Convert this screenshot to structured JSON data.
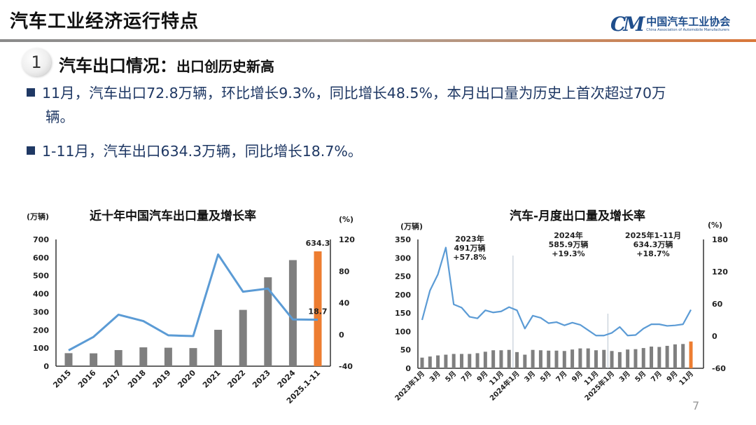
{
  "header": {
    "title": "汽车工业经济运行特点",
    "logo_cn": "中国汽车工业协会",
    "logo_en": "China Association of Automobile Manufacturers",
    "logo_mark": "CM"
  },
  "section": {
    "number": "1",
    "title": "汽车出口情况：",
    "subtitle": "出口创历史新高"
  },
  "bullets": [
    {
      "line1": "11月，汽车出口72.8万辆，环比增长9.3%，同比增长48.5%，本月出口量为历史上首次超过70万",
      "line2": "辆。"
    },
    {
      "line1": "1-11月，汽车出口634.3万辆，同比增长18.7%。"
    }
  ],
  "page_number": "7",
  "colors": {
    "bar": "#7f7f7f",
    "highlight": "#ed7d31",
    "line": "#5b9bd5",
    "text": "#1f3864"
  },
  "chart_data": [
    {
      "type": "bar+line",
      "title": "近十年中国汽车出口量及增长率",
      "ylabel_left": "(万辆)",
      "ylabel_right": "(%)",
      "ylim_left": [
        0,
        700
      ],
      "yticks_left": [
        "0",
        "100",
        "200",
        "300",
        "400",
        "500",
        "600",
        "700"
      ],
      "ylim_right": [
        -40,
        120
      ],
      "yticks_right": [
        "-40",
        "0",
        "40",
        "80",
        "120"
      ],
      "categories": [
        "2015",
        "2016",
        "2017",
        "2018",
        "2019",
        "2020",
        "2021",
        "2022",
        "2023",
        "2024",
        "2025.1-11"
      ],
      "series": [
        {
          "kind": "bar",
          "values": [
            72,
            71,
            89,
            104,
            102,
            100,
            201,
            311,
            491,
            586,
            634.3
          ]
        },
        {
          "kind": "line",
          "axis": "right",
          "values": [
            -20,
            -3,
            25,
            17,
            -1,
            -2,
            101,
            54,
            58,
            19,
            18.7
          ]
        }
      ],
      "data_labels": {
        "bar_last": "634.3",
        "line_last": "18.7"
      },
      "grid": false
    },
    {
      "type": "bar+line",
      "title": "汽车-月度出口量及增长率",
      "ylabel_left": "(万辆)",
      "ylabel_right": "(%)",
      "ylim_left": [
        0,
        350
      ],
      "yticks_left": [
        "0",
        "50",
        "100",
        "150",
        "200",
        "250",
        "300",
        "350"
      ],
      "ylim_right": [
        -60,
        180
      ],
      "yticks_right": [
        "-60",
        "0",
        "60",
        "120",
        "180"
      ],
      "categories": [
        "2023年1月",
        "",
        "3月",
        "",
        "5月",
        "",
        "7月",
        "",
        "9月",
        "",
        "11月",
        "",
        "2024年1月",
        "",
        "3月",
        "",
        "5月",
        "",
        "7月",
        "",
        "9月",
        "",
        "11月",
        "",
        "2025年1月",
        "",
        "3月",
        "",
        "5月",
        "",
        "7月",
        "",
        "9月",
        "",
        "11月"
      ],
      "series": [
        {
          "kind": "bar",
          "values": [
            29,
            32,
            35,
            37,
            39,
            39,
            39,
            41,
            45,
            49,
            49,
            50,
            44,
            37,
            50,
            49,
            48,
            48,
            47,
            51,
            54,
            54,
            49,
            50,
            47,
            44,
            51,
            52,
            55,
            59,
            58,
            61,
            65,
            66,
            72.8
          ]
        },
        {
          "kind": "line",
          "axis": "right",
          "values": [
            30,
            85,
            115,
            165,
            59,
            53,
            36,
            33,
            48,
            44,
            46,
            54,
            48,
            14,
            38,
            34,
            24,
            26,
            20,
            25,
            21,
            11,
            1,
            1,
            6,
            17,
            1,
            2,
            14,
            22,
            22,
            19,
            20,
            22,
            49
          ]
        }
      ],
      "annotations": [
        {
          "lines": [
            "2023年",
            "491万辆",
            "+57.8%"
          ]
        },
        {
          "lines": [
            "2024年",
            "585.9万辆",
            "+19.3%"
          ]
        },
        {
          "lines": [
            "2025年1-11月",
            "634.3万辆",
            "+18.7%"
          ]
        }
      ],
      "grid": false
    }
  ]
}
